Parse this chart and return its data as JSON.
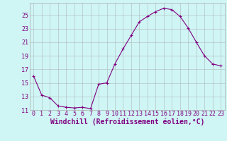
{
  "x": [
    0,
    1,
    2,
    3,
    4,
    5,
    6,
    7,
    8,
    9,
    10,
    11,
    12,
    13,
    14,
    15,
    16,
    17,
    18,
    19,
    20,
    21,
    22,
    23
  ],
  "y": [
    16.0,
    13.2,
    12.8,
    11.6,
    11.4,
    11.3,
    11.4,
    11.2,
    14.8,
    15.0,
    17.8,
    20.0,
    22.0,
    24.0,
    24.8,
    25.5,
    26.0,
    25.8,
    24.8,
    23.1,
    21.0,
    19.0,
    17.8,
    17.5
  ],
  "line_color": "#800080",
  "marker": "+",
  "marker_size": 3,
  "background_color": "#cff5f5",
  "grid_color": "#aaaaaa",
  "xlabel": "Windchill (Refroidissement éolien,°C)",
  "ylim": [
    11,
    26
  ],
  "xlim_min": -0.5,
  "xlim_max": 23.5,
  "yticks": [
    11,
    13,
    15,
    17,
    19,
    21,
    23,
    25
  ],
  "xticks": [
    0,
    1,
    2,
    3,
    4,
    5,
    6,
    7,
    8,
    9,
    10,
    11,
    12,
    13,
    14,
    15,
    16,
    17,
    18,
    19,
    20,
    21,
    22,
    23
  ],
  "font_color": "#800080",
  "tick_fontsize": 6,
  "xlabel_fontsize": 7
}
